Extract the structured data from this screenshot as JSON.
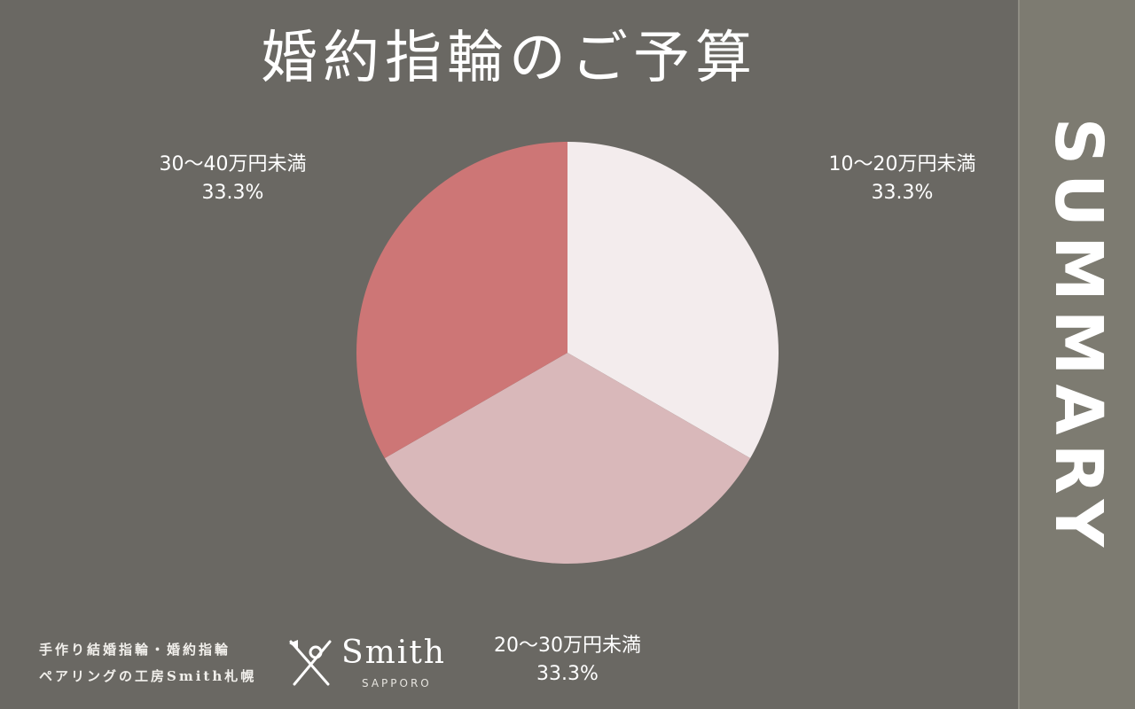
{
  "title": "婚約指輪のご予算",
  "side_label": "SUMMARY",
  "footer": {
    "line1": "手作り結婚指輪・婚約指輪",
    "line2": "ペアリングの工房Smith札幌"
  },
  "logo": {
    "name": "Smith",
    "sub": "SAPPORO"
  },
  "colors": {
    "background": "#6a6863",
    "side_panel": "#7d7b71",
    "slice_1": "#f3eced",
    "slice_2": "#d9b8ba",
    "slice_3": "#cd7676",
    "label_text": "#ffffff"
  },
  "chart_data": {
    "type": "pie",
    "title": "婚約指輪のご予算",
    "slices": [
      {
        "label": "10〜20万円未満",
        "value": 33.3,
        "value_label": "33.3%",
        "color": "#f3eced"
      },
      {
        "label": "20〜30万円未満",
        "value": 33.3,
        "value_label": "33.3%",
        "color": "#d9b8ba"
      },
      {
        "label": "30〜40万円未満",
        "value": 33.3,
        "value_label": "33.3%",
        "color": "#cd7676"
      }
    ]
  }
}
